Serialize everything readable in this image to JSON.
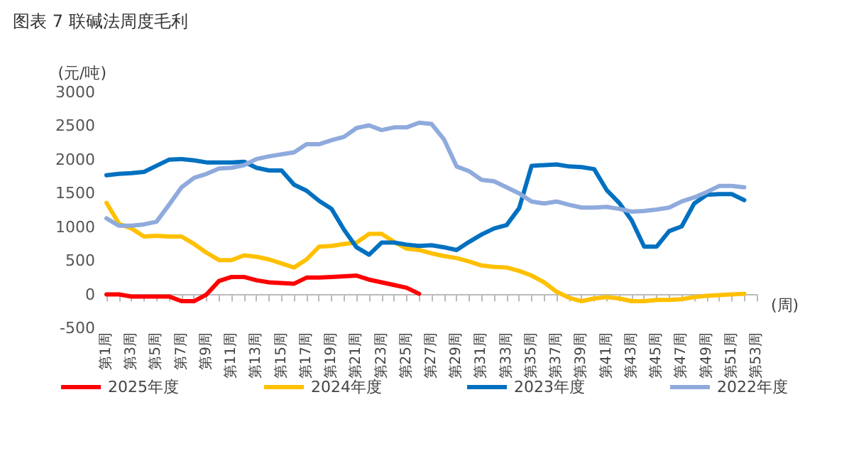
{
  "chart_data": {
    "type": "line",
    "title": "图表 7 联碱法周度毛利",
    "ylabel": "(元/吨)",
    "xlabel": "(周)",
    "categories": [
      "第1周",
      null,
      "第3周",
      null,
      "第5周",
      null,
      "第7周",
      null,
      "第9周",
      null,
      "第11周",
      null,
      "第13周",
      null,
      "第15周",
      null,
      "第17周",
      null,
      "第19周",
      null,
      "第21周",
      null,
      "第23周",
      null,
      "第25周",
      null,
      "第27周",
      null,
      "第29周",
      null,
      "第31周",
      null,
      "第33周",
      null,
      "第35周",
      null,
      "第37周",
      null,
      "第39周",
      null,
      "第41周",
      null,
      "第43周",
      null,
      "第45周",
      null,
      "第47周",
      null,
      "第49周",
      null,
      "第51周",
      null,
      "第53周"
    ],
    "series": [
      {
        "name": "2025年度",
        "color": "#ff0000",
        "values": [
          0,
          0,
          -30,
          -30,
          -30,
          -30,
          -100,
          -100,
          0,
          200,
          260,
          260,
          210,
          180,
          170,
          160,
          250,
          250,
          260,
          270,
          280,
          220,
          180,
          140,
          100,
          10,
          null,
          null,
          null,
          null,
          null,
          null,
          null,
          null,
          null,
          null,
          null,
          null,
          null,
          null,
          null,
          null,
          null,
          null,
          null,
          null,
          null,
          null,
          null,
          null,
          null,
          null,
          null
        ]
      },
      {
        "name": "2024年度",
        "color": "#ffc000",
        "values": [
          1360,
          1050,
          980,
          860,
          870,
          860,
          860,
          750,
          620,
          510,
          510,
          580,
          560,
          520,
          460,
          400,
          520,
          710,
          720,
          750,
          770,
          900,
          900,
          780,
          680,
          660,
          610,
          570,
          540,
          490,
          430,
          410,
          400,
          350,
          280,
          180,
          40,
          -50,
          -100,
          -60,
          -40,
          -60,
          -100,
          -100,
          -80,
          -80,
          -70,
          -40,
          -20,
          -10,
          0,
          10,
          null
        ]
      },
      {
        "name": "2023年度",
        "color": "#0070c0",
        "values": [
          1770,
          1790,
          1800,
          1820,
          1910,
          2000,
          2010,
          1990,
          1960,
          1960,
          1960,
          1970,
          1880,
          1840,
          1840,
          1630,
          1540,
          1390,
          1270,
          960,
          700,
          590,
          770,
          770,
          740,
          720,
          730,
          700,
          660,
          780,
          890,
          980,
          1030,
          1280,
          1910,
          1920,
          1930,
          1900,
          1890,
          1860,
          1550,
          1360,
          1100,
          710,
          710,
          940,
          1010,
          1350,
          1480,
          1490,
          1490,
          1400,
          null
        ]
      },
      {
        "name": "2022年度",
        "color": "#8faadc",
        "values": [
          1130,
          1020,
          1020,
          1040,
          1080,
          1330,
          1590,
          1730,
          1790,
          1870,
          1880,
          1920,
          2010,
          2050,
          2080,
          2110,
          2230,
          2230,
          2290,
          2340,
          2470,
          2510,
          2440,
          2480,
          2480,
          2550,
          2530,
          2300,
          1900,
          1830,
          1700,
          1680,
          1590,
          1500,
          1380,
          1350,
          1380,
          1330,
          1290,
          1290,
          1300,
          1270,
          1230,
          1240,
          1260,
          1290,
          1380,
          1440,
          1520,
          1610,
          1610,
          1590,
          null
        ]
      }
    ],
    "ylim": [
      -500,
      3000
    ],
    "yticks": [
      -500,
      0,
      500,
      1000,
      1500,
      2000,
      2500,
      3000
    ],
    "legend": "bottom",
    "marker": "none",
    "line_style": "solid"
  }
}
